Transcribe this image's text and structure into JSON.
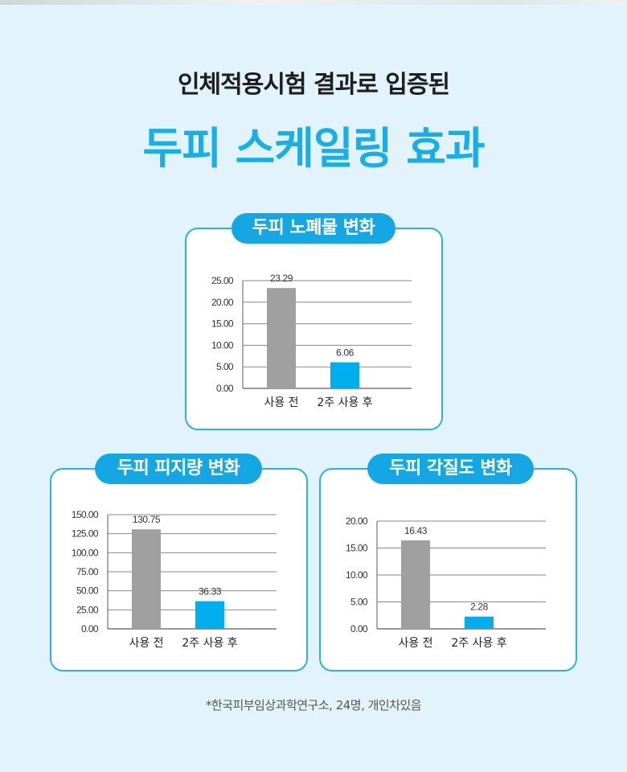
{
  "header": {
    "subtitle": "인체적용시험 결과로 입증된",
    "title": "두피 스케일링 효과"
  },
  "colors": {
    "accent": "#15a7e3",
    "bar_before": "#a0a0a0",
    "bar_after": "#00aeef"
  },
  "chart_data": [
    {
      "type": "bar",
      "title": "두피 노폐물 변화",
      "categories": [
        "사용 전",
        "2주 사용 후"
      ],
      "values": [
        23.29,
        6.06
      ],
      "value_labels": [
        "23.29",
        "6.06"
      ],
      "yticks": [
        "0.00",
        "5.00",
        "10.00",
        "15.00",
        "20.00",
        "25.00"
      ],
      "ylim": [
        0,
        25
      ],
      "grid": true
    },
    {
      "type": "bar",
      "title": "두피 피지량 변화",
      "categories": [
        "사용 전",
        "2주 사용 후"
      ],
      "values": [
        130.75,
        36.33
      ],
      "value_labels": [
        "130.75",
        "36.33"
      ],
      "yticks": [
        "0.00",
        "25.00",
        "50.00",
        "75.00",
        "100.00",
        "125.00",
        "150.00"
      ],
      "ylim": [
        0,
        150
      ],
      "grid": true
    },
    {
      "type": "bar",
      "title": "두피 각질도 변화",
      "categories": [
        "사용 전",
        "2주 사용 후"
      ],
      "values": [
        16.43,
        2.28
      ],
      "value_labels": [
        "16.43",
        "2.28"
      ],
      "yticks": [
        "0.00",
        "5.00",
        "10.00",
        "15.00",
        "20.00"
      ],
      "ylim": [
        0,
        20
      ],
      "grid": true
    }
  ],
  "footnote": "*한국피부임상과학연구소, 24명, 개인차있음"
}
